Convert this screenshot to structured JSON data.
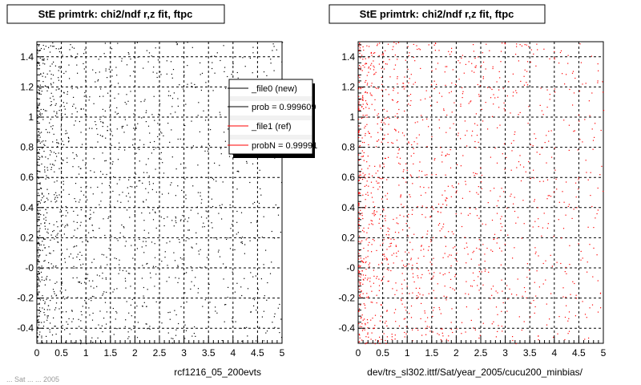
{
  "chart_data": [
    {
      "type": "scatter",
      "title": "StE primtrk: chi2/ndf r,z fit, ftpc",
      "xlim": [
        0,
        5
      ],
      "ylim": [
        -0.5,
        1.5
      ],
      "x_ticks": [
        0,
        0.5,
        1,
        1.5,
        2,
        2.5,
        3,
        3.5,
        4,
        4.5,
        5
      ],
      "x_tick_labels": [
        "0",
        "0.5",
        "1",
        "1.5",
        "2",
        "2.5",
        "3",
        "3.5",
        "4",
        "4.5",
        "5"
      ],
      "y_ticks": [
        -0.4,
        -0.2,
        0,
        0.2,
        0.4,
        0.6,
        0.8,
        1.0,
        1.2,
        1.4
      ],
      "y_tick_labels": [
        "-0.4",
        "-0.2",
        "-0",
        "0.2",
        "0.4",
        "0.6",
        "0.8",
        "1",
        "1.2",
        "1.4"
      ],
      "grid": true,
      "marker_color": "#000000",
      "density_note_points": 1400,
      "caption": "rcf1216_05_200evts",
      "legend": {
        "placement": "top-right",
        "entries": [
          {
            "label": "_file0 (new)",
            "color": "#000000"
          },
          {
            "label": "prob = 0.999609",
            "color": "#000000"
          },
          {
            "label": "_file1 (ref)",
            "color": "#ff0000"
          },
          {
            "label": "probN = 0.99991",
            "color": "#ff0000"
          }
        ]
      }
    },
    {
      "type": "scatter",
      "title": "StE primtrk: chi2/ndf r,z fit, ftpc",
      "xlim": [
        0,
        5
      ],
      "ylim": [
        -0.5,
        1.5
      ],
      "x_ticks": [
        0,
        0.5,
        1,
        1.5,
        2,
        2.5,
        3,
        3.5,
        4,
        4.5,
        5
      ],
      "x_tick_labels": [
        "0",
        "0.5",
        "1",
        "1.5",
        "2",
        "2.5",
        "3",
        "3.5",
        "4",
        "4.5",
        "5"
      ],
      "y_ticks": [
        -0.4,
        -0.2,
        0,
        0.2,
        0.4,
        0.6,
        0.8,
        1.0,
        1.2,
        1.4
      ],
      "y_tick_labels": [
        "-0.4",
        "-0.2",
        "-0",
        "0.2",
        "0.4",
        "0.6",
        "0.8",
        "1",
        "1.2",
        "1.4"
      ],
      "grid": true,
      "marker_color": "#ff0000",
      "density_note_points": 1400,
      "caption": "dev/trs_sl302.ittf/Sat/year_2005/cucu200_minbias/"
    }
  ],
  "footer_faint": "... Sat ... ... 2005"
}
